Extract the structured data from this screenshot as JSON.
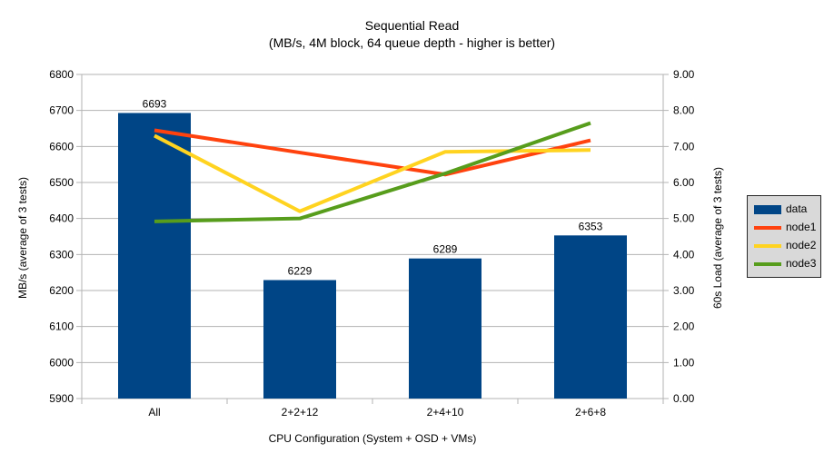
{
  "title": "Sequential Read",
  "subtitle": "(MB/s, 4M block, 64 queue depth - higher is better)",
  "chart_data": {
    "type": "bar",
    "combo": "bars on left axis + lines on right axis",
    "categories": [
      "All",
      "2+2+12",
      "2+4+10",
      "2+6+8"
    ],
    "bar_series": {
      "name": "data",
      "axis": "left",
      "color": "#004586",
      "values": [
        6693,
        6229,
        6289,
        6353
      ],
      "data_labels": [
        "6693",
        "6229",
        "6289",
        "6353"
      ]
    },
    "line_series": [
      {
        "name": "node1",
        "axis": "right",
        "color": "#FF420E",
        "values": [
          7.45,
          6.83,
          6.22,
          7.17
        ]
      },
      {
        "name": "node2",
        "axis": "right",
        "color": "#FFD320",
        "values": [
          7.3,
          5.2,
          6.85,
          6.9
        ]
      },
      {
        "name": "node3",
        "axis": "right",
        "color": "#579D1C",
        "values": [
          4.92,
          5.0,
          6.25,
          7.65
        ]
      }
    ],
    "left_axis": {
      "title": "MB/s (average of 3 tests)",
      "min": 5900,
      "max": 6800,
      "step": 100,
      "tick_labels": [
        "5900",
        "6000",
        "6100",
        "6200",
        "6300",
        "6400",
        "6500",
        "6600",
        "6700",
        "6800"
      ]
    },
    "right_axis": {
      "title": "60s Load (average of 3 tests)",
      "min": 0,
      "max": 9,
      "step": 1,
      "tick_labels": [
        "0.00",
        "1.00",
        "2.00",
        "3.00",
        "4.00",
        "5.00",
        "6.00",
        "7.00",
        "8.00",
        "9.00"
      ]
    },
    "x_axis": {
      "title": "CPU Configuration (System + OSD + VMs)"
    },
    "grid": "horizontal",
    "legend_position": "right"
  },
  "legend": {
    "items": [
      {
        "label": "data",
        "color": "#004586",
        "swatch": "box"
      },
      {
        "label": "node1",
        "color": "#FF420E",
        "swatch": "line"
      },
      {
        "label": "node2",
        "color": "#FFD320",
        "swatch": "line"
      },
      {
        "label": "node3",
        "color": "#579D1C",
        "swatch": "line"
      }
    ]
  },
  "colors": {
    "background": "#FFFFFF",
    "bar": "#004586",
    "grid": "#B3B3B3",
    "axis": "#B3B3B3",
    "text": "#000000",
    "legend_bg": "#D9D9D9",
    "legend_border": "#262626"
  }
}
